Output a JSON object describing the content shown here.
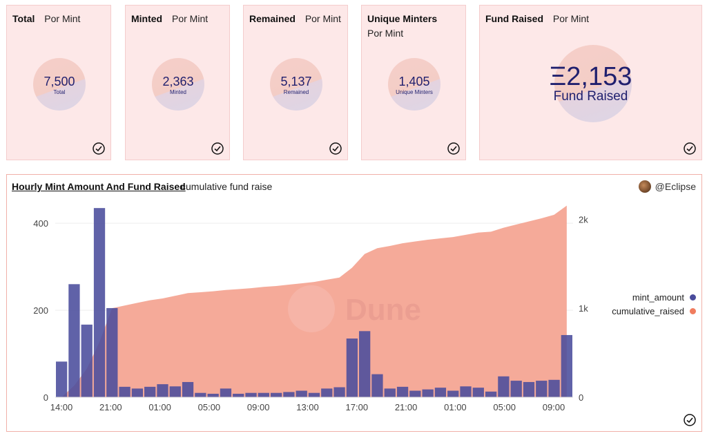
{
  "cards": [
    {
      "title": "Total",
      "tab": "Por Mint",
      "value": "7,500",
      "label": "Total"
    },
    {
      "title": "Minted",
      "tab": "Por Mint",
      "value": "2,363",
      "label": "Minted"
    },
    {
      "title": "Remained",
      "tab": "Por Mint",
      "value": "5,137",
      "label": "Remained"
    },
    {
      "title": "Unique Minters",
      "tab": "Por Mint",
      "value": "1,405",
      "label": "Unique Minters"
    },
    {
      "title": "Fund Raised",
      "tab": "Por Mint",
      "value": "Ξ2,153",
      "label": "Fund Raised"
    }
  ],
  "chart_panel": {
    "title": "Hourly Mint Amount And Fund Raised",
    "tab": "cumulative fund raise",
    "author": "@Eclipse",
    "watermark": "Dune"
  },
  "colors": {
    "bar": "#4a4c9c",
    "area": "#f4a593",
    "card_bg": "#fde8e8",
    "text_dark": "#1f1f6e"
  },
  "chart_data": {
    "type": "bar",
    "x_tick_labels": [
      "14:00",
      "21:00",
      "01:00",
      "05:00",
      "09:00",
      "13:00",
      "17:00",
      "21:00",
      "01:00",
      "05:00",
      "09:00"
    ],
    "y_left_ticks": [
      "0",
      "200",
      "400"
    ],
    "y_right_ticks": [
      "0",
      "1k",
      "2k"
    ],
    "ylim_left": [
      0,
      440
    ],
    "ylim_right": [
      0,
      2150
    ],
    "legend_position": "right",
    "series": [
      {
        "name": "mint_amount",
        "type": "bar",
        "color": "#4a4c9c",
        "values": [
          82,
          260,
          167,
          435,
          205,
          24,
          20,
          24,
          30,
          25,
          35,
          10,
          8,
          20,
          8,
          10,
          10,
          10,
          12,
          15,
          10,
          20,
          23,
          135,
          152,
          53,
          20,
          24,
          15,
          18,
          22,
          15,
          25,
          22,
          13,
          48,
          38,
          35,
          38,
          40,
          143
        ]
      },
      {
        "name": "cumulative_raised",
        "type": "area",
        "color": "#f4a593",
        "values": [
          0,
          130,
          320,
          620,
          1000,
          1030,
          1060,
          1090,
          1110,
          1140,
          1170,
          1180,
          1190,
          1205,
          1215,
          1225,
          1240,
          1250,
          1265,
          1280,
          1295,
          1320,
          1345,
          1455,
          1610,
          1675,
          1700,
          1730,
          1750,
          1770,
          1785,
          1800,
          1825,
          1850,
          1860,
          1905,
          1940,
          1975,
          2010,
          2050,
          2153
        ]
      }
    ]
  }
}
